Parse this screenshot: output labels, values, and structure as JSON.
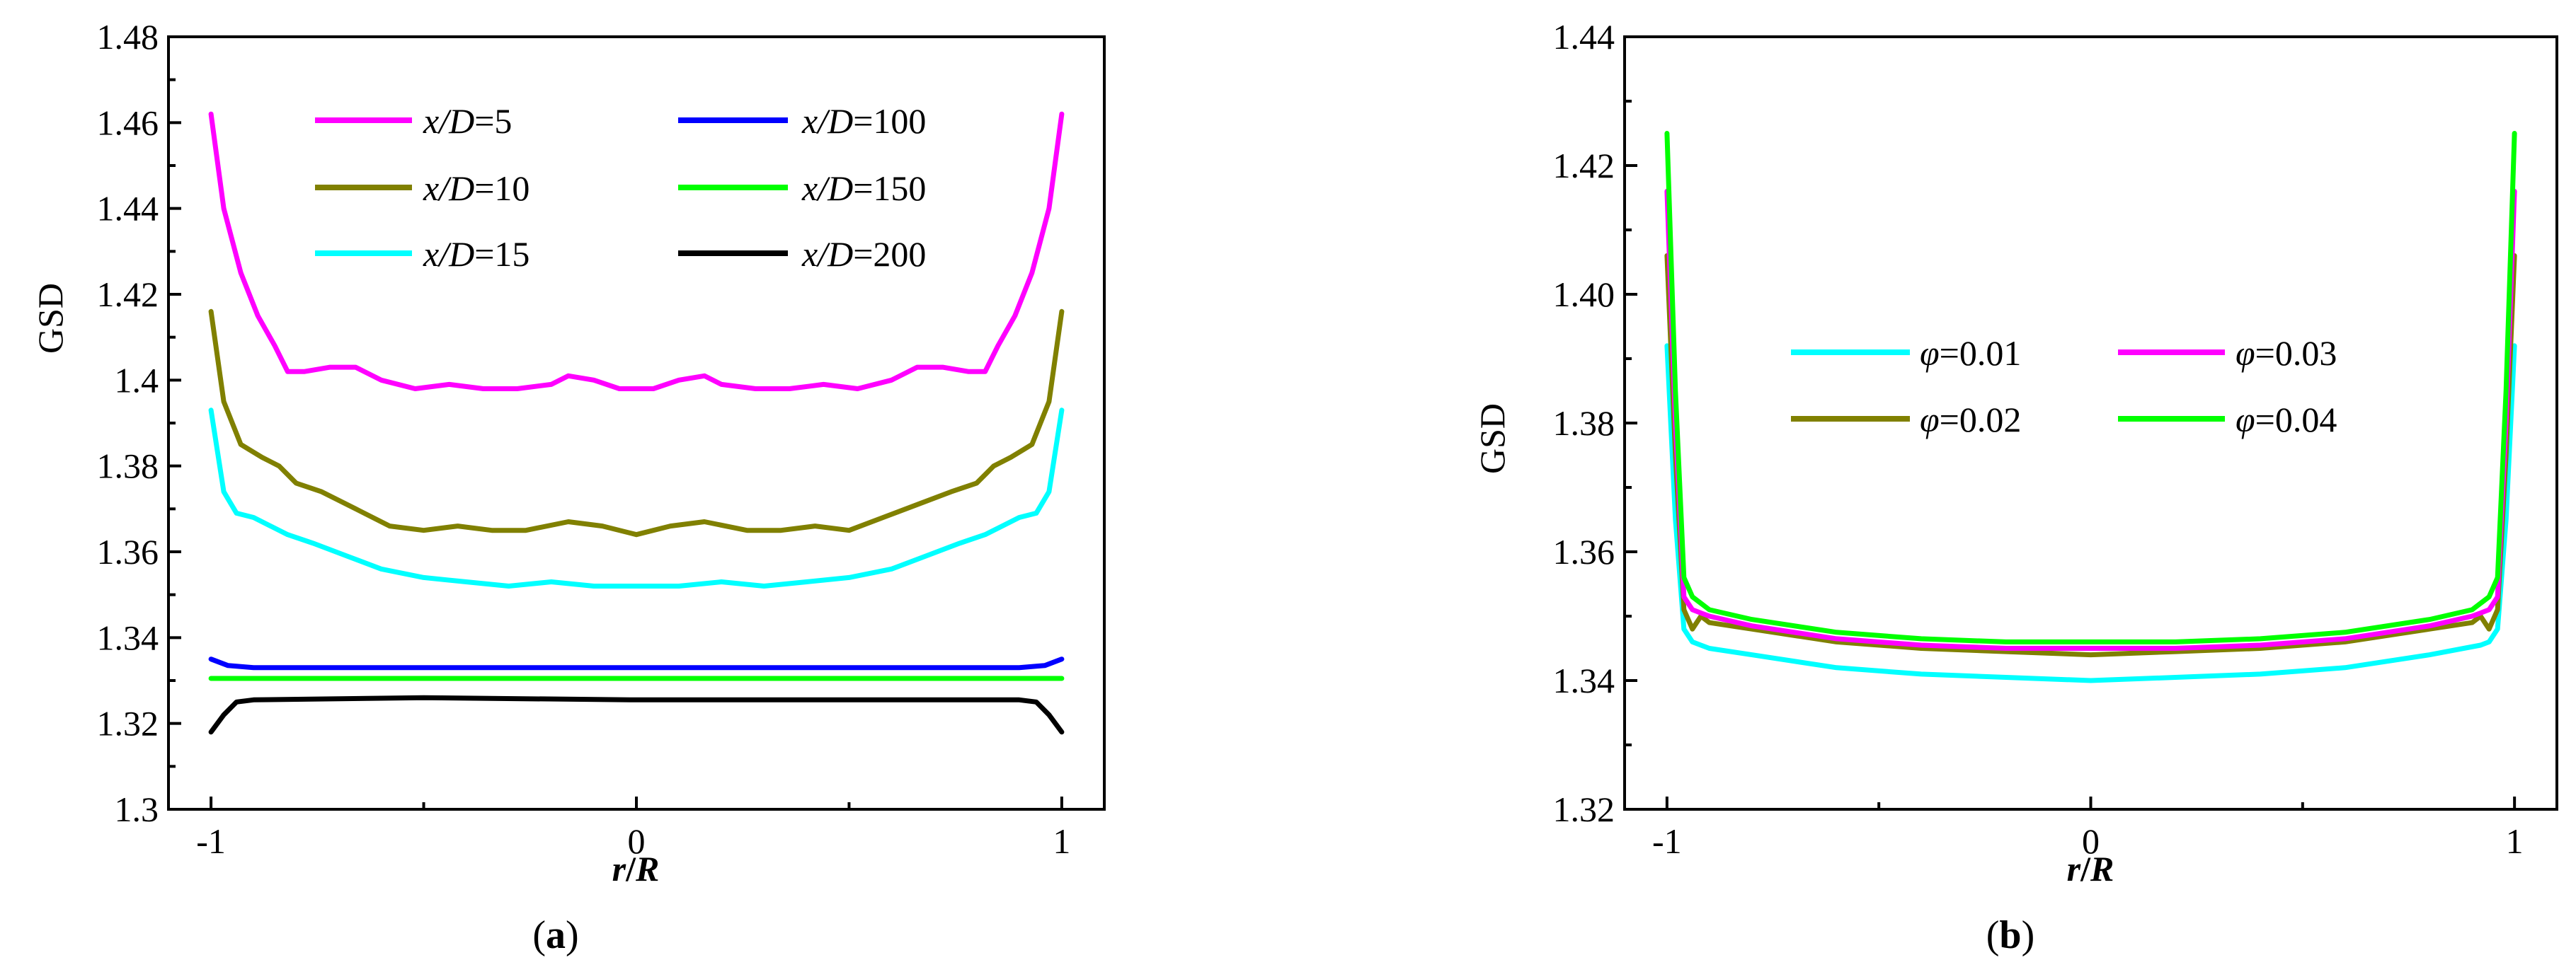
{
  "chart_data": [
    {
      "type": "line",
      "panel": "a",
      "caption_open": "(",
      "caption_letter": "a",
      "caption_close": ")",
      "xlabel_var": "r",
      "xlabel_slash": "/",
      "xlabel_var2": "R",
      "ylabel": "GSD",
      "xlim": [
        -1.1,
        1.1
      ],
      "ylim": [
        1.3,
        1.48
      ],
      "xticks": [
        -1,
        0,
        1
      ],
      "xtick_labels": [
        "-1",
        "0",
        "1"
      ],
      "yticks": [
        1.3,
        1.32,
        1.34,
        1.36,
        1.38,
        1.4,
        1.42,
        1.44,
        1.46,
        1.48
      ],
      "ytick_labels": [
        "1.3",
        "1.32",
        "1.34",
        "1.36",
        "1.38",
        "1.4",
        "1.42",
        "1.44",
        "1.46",
        "1.48"
      ],
      "legend_position": "top",
      "series": [
        {
          "name": "x/D=5",
          "var": "x/D",
          "eq": "=5",
          "color": "#ff00ff",
          "x": [
            -1,
            -0.97,
            -0.93,
            -0.89,
            -0.85,
            -0.82,
            -0.78,
            -0.72,
            -0.66,
            -0.6,
            -0.52,
            -0.44,
            -0.36,
            -0.28,
            -0.2,
            -0.16,
            -0.1,
            -0.04,
            0,
            0.04,
            0.1,
            0.16,
            0.2,
            0.28,
            0.36,
            0.44,
            0.52,
            0.6,
            0.66,
            0.72,
            0.78,
            0.82,
            0.85,
            0.89,
            0.93,
            0.97,
            1
          ],
          "y": [
            1.462,
            1.44,
            1.425,
            1.415,
            1.408,
            1.402,
            1.402,
            1.403,
            1.403,
            1.4,
            1.398,
            1.399,
            1.398,
            1.398,
            1.399,
            1.401,
            1.4,
            1.398,
            1.398,
            1.398,
            1.4,
            1.401,
            1.399,
            1.398,
            1.398,
            1.399,
            1.398,
            1.4,
            1.403,
            1.403,
            1.402,
            1.402,
            1.408,
            1.415,
            1.425,
            1.44,
            1.462
          ]
        },
        {
          "name": "x/D=10",
          "var": "x/D",
          "eq": "=10",
          "color": "#808000",
          "x": [
            -1,
            -0.97,
            -0.93,
            -0.88,
            -0.84,
            -0.8,
            -0.74,
            -0.66,
            -0.58,
            -0.5,
            -0.42,
            -0.34,
            -0.26,
            -0.16,
            -0.08,
            0,
            0.08,
            0.16,
            0.26,
            0.34,
            0.42,
            0.5,
            0.58,
            0.66,
            0.74,
            0.8,
            0.84,
            0.88,
            0.93,
            0.97,
            1
          ],
          "y": [
            1.416,
            1.395,
            1.385,
            1.382,
            1.38,
            1.376,
            1.374,
            1.37,
            1.366,
            1.365,
            1.366,
            1.365,
            1.365,
            1.367,
            1.366,
            1.364,
            1.366,
            1.367,
            1.365,
            1.365,
            1.366,
            1.365,
            1.368,
            1.371,
            1.374,
            1.376,
            1.38,
            1.382,
            1.385,
            1.395,
            1.416
          ]
        },
        {
          "name": "x/D=15",
          "var": "x/D",
          "eq": "=15",
          "color": "#00ffff",
          "x": [
            -1,
            -0.97,
            -0.94,
            -0.9,
            -0.86,
            -0.82,
            -0.76,
            -0.68,
            -0.6,
            -0.5,
            -0.4,
            -0.3,
            -0.2,
            -0.1,
            0,
            0.1,
            0.2,
            0.3,
            0.4,
            0.5,
            0.6,
            0.68,
            0.76,
            0.82,
            0.86,
            0.9,
            0.94,
            0.97,
            1
          ],
          "y": [
            1.393,
            1.374,
            1.369,
            1.368,
            1.366,
            1.364,
            1.362,
            1.359,
            1.356,
            1.354,
            1.353,
            1.352,
            1.353,
            1.352,
            1.352,
            1.352,
            1.353,
            1.352,
            1.353,
            1.354,
            1.356,
            1.359,
            1.362,
            1.364,
            1.366,
            1.368,
            1.369,
            1.374,
            1.393
          ]
        },
        {
          "name": "x/D=100",
          "var": "x/D",
          "eq": "=100",
          "color": "#0000ff",
          "x": [
            -1,
            -0.96,
            -0.9,
            -0.5,
            0,
            0.5,
            0.9,
            0.96,
            1
          ],
          "y": [
            1.335,
            1.3335,
            1.333,
            1.333,
            1.333,
            1.333,
            1.333,
            1.3335,
            1.335
          ]
        },
        {
          "name": "x/D=150",
          "var": "x/D",
          "eq": "=150",
          "color": "#00ff00",
          "x": [
            -1,
            -0.5,
            0,
            0.5,
            1
          ],
          "y": [
            1.3305,
            1.3305,
            1.3305,
            1.3305,
            1.3305
          ]
        },
        {
          "name": "x/D=200",
          "var": "x/D",
          "eq": "=200",
          "color": "#000000",
          "x": [
            -1,
            -0.97,
            -0.94,
            -0.9,
            -0.5,
            0,
            0.5,
            0.9,
            0.94,
            0.97,
            1
          ],
          "y": [
            1.318,
            1.322,
            1.325,
            1.3255,
            1.326,
            1.3255,
            1.3255,
            1.3255,
            1.325,
            1.322,
            1.318
          ]
        }
      ]
    },
    {
      "type": "line",
      "panel": "b",
      "caption_open": "(",
      "caption_letter": "b",
      "caption_close": ")",
      "xlabel_var": "r",
      "xlabel_slash": "/",
      "xlabel_var2": "R",
      "ylabel": "GSD",
      "xlim": [
        -1.1,
        1.1
      ],
      "ylim": [
        1.32,
        1.44
      ],
      "xticks": [
        -1,
        0,
        1
      ],
      "xtick_labels": [
        "-1",
        "0",
        "1"
      ],
      "yticks": [
        1.32,
        1.34,
        1.36,
        1.38,
        1.4,
        1.42,
        1.44
      ],
      "ytick_labels": [
        "1.32",
        "1.34",
        "1.36",
        "1.38",
        "1.40",
        "1.42",
        "1.44"
      ],
      "legend_position": "center",
      "series": [
        {
          "name": "φ=0.01",
          "var": "φ",
          "eq": "=0.01",
          "color": "#00ffff",
          "x": [
            -1,
            -0.98,
            -0.96,
            -0.94,
            -0.92,
            -0.9,
            -0.8,
            -0.6,
            -0.4,
            -0.2,
            0,
            0.2,
            0.4,
            0.6,
            0.8,
            0.88,
            0.92,
            0.94,
            0.96,
            0.98,
            1
          ],
          "y": [
            1.392,
            1.365,
            1.348,
            1.346,
            1.3455,
            1.345,
            1.344,
            1.342,
            1.341,
            1.3405,
            1.34,
            1.3405,
            1.341,
            1.342,
            1.344,
            1.345,
            1.3455,
            1.346,
            1.348,
            1.365,
            1.392
          ]
        },
        {
          "name": "φ=0.02",
          "var": "φ",
          "eq": "=0.02",
          "color": "#808000",
          "x": [
            -1,
            -0.98,
            -0.96,
            -0.94,
            -0.92,
            -0.9,
            -0.8,
            -0.6,
            -0.4,
            -0.2,
            0,
            0.2,
            0.4,
            0.6,
            0.8,
            0.9,
            0.92,
            0.94,
            0.96,
            0.98,
            1
          ],
          "y": [
            1.406,
            1.375,
            1.351,
            1.348,
            1.35,
            1.349,
            1.348,
            1.346,
            1.345,
            1.3445,
            1.344,
            1.3445,
            1.345,
            1.346,
            1.348,
            1.349,
            1.35,
            1.348,
            1.351,
            1.375,
            1.406
          ]
        },
        {
          "name": "φ=0.03",
          "var": "φ",
          "eq": "=0.03",
          "color": "#ff00ff",
          "x": [
            -1,
            -0.98,
            -0.96,
            -0.94,
            -0.92,
            -0.9,
            -0.8,
            -0.6,
            -0.4,
            -0.2,
            0,
            0.2,
            0.4,
            0.6,
            0.8,
            0.9,
            0.92,
            0.94,
            0.96,
            0.98,
            1
          ],
          "y": [
            1.416,
            1.38,
            1.353,
            1.351,
            1.3505,
            1.35,
            1.3485,
            1.3465,
            1.3455,
            1.345,
            1.345,
            1.345,
            1.3455,
            1.3465,
            1.3485,
            1.35,
            1.3505,
            1.351,
            1.353,
            1.38,
            1.416
          ]
        },
        {
          "name": "φ=0.04",
          "var": "φ",
          "eq": "=0.04",
          "color": "#00ff00",
          "x": [
            -1,
            -0.98,
            -0.96,
            -0.94,
            -0.92,
            -0.9,
            -0.8,
            -0.6,
            -0.4,
            -0.2,
            0,
            0.2,
            0.4,
            0.6,
            0.8,
            0.9,
            0.92,
            0.94,
            0.96,
            0.98,
            1
          ],
          "y": [
            1.425,
            1.385,
            1.356,
            1.353,
            1.352,
            1.351,
            1.3495,
            1.3475,
            1.3465,
            1.346,
            1.346,
            1.346,
            1.3465,
            1.3475,
            1.3495,
            1.351,
            1.352,
            1.353,
            1.356,
            1.385,
            1.425
          ]
        }
      ]
    }
  ]
}
